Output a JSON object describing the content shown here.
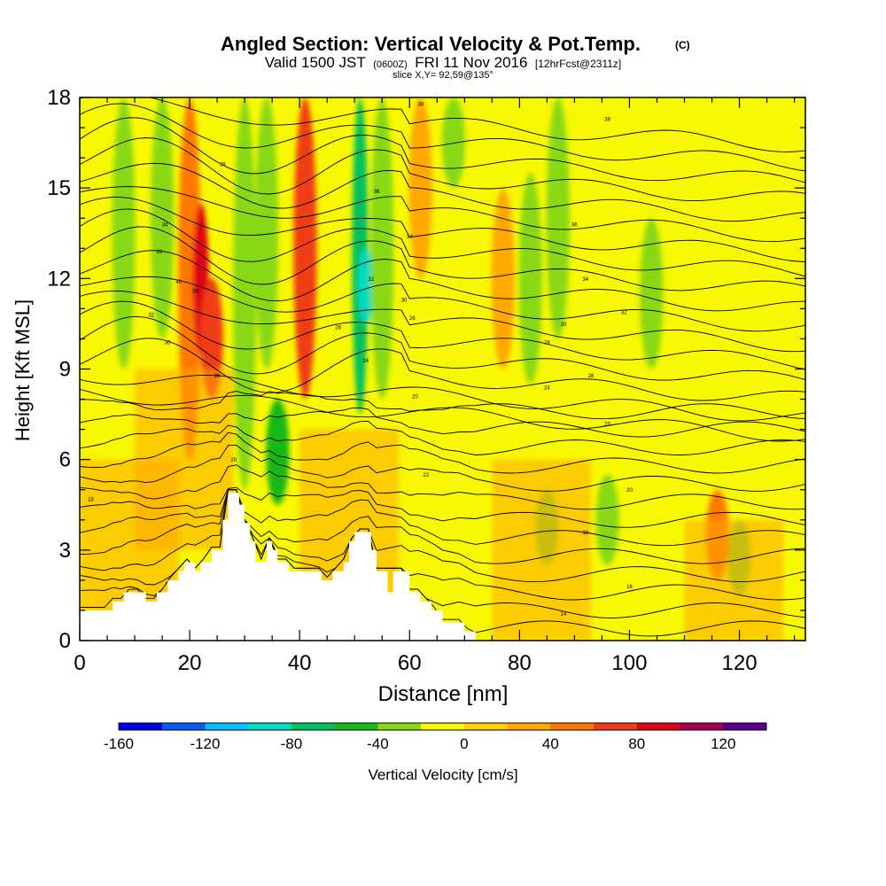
{
  "chart_data": {
    "type": "heatmap",
    "title": "Angled Section: Vertical Velocity & Pot.Temp.",
    "title_mark": "(C)",
    "subtitle": {
      "valid": "Valid 1500 JST",
      "utc": "(0600Z)",
      "date": "FRI 11 Nov 2016",
      "forecast": "[12hrFcst@2311z]"
    },
    "slice_label": "slice X,Y= 92,59@135°",
    "xlabel": "Distance [nm]",
    "ylabel": "Height [Kft MSL]",
    "xlim": [
      0,
      132
    ],
    "ylim": [
      0,
      18
    ],
    "xticks": [
      0,
      20,
      40,
      60,
      80,
      100,
      120
    ],
    "yticks": [
      0,
      3,
      6,
      9,
      12,
      15,
      18
    ],
    "grid": false,
    "colorbar": {
      "label": "Vertical Velocity [cm/s]",
      "range": [
        -160,
        140
      ],
      "step": 20,
      "tick_values": [
        -160,
        -120,
        -80,
        -40,
        0,
        40,
        80,
        120
      ],
      "colors": [
        "#0000ee",
        "#0a5cf5",
        "#00c0ff",
        "#00dcc0",
        "#00c060",
        "#18b818",
        "#88d818",
        "#f8f800",
        "#ffd000",
        "#ffa800",
        "#ff7800",
        "#f03c14",
        "#e00018",
        "#a8004c",
        "#5a0090"
      ]
    },
    "velocity_features": [
      {
        "x": 8,
        "zmin": 9,
        "zmax": 18,
        "value": -30
      },
      {
        "x": 15,
        "zmin": 10,
        "zmax": 18,
        "value": -30
      },
      {
        "x": 20,
        "zmin": 6,
        "zmax": 18,
        "value": 50
      },
      {
        "x": 22,
        "zmin": 9.5,
        "zmax": 14.5,
        "value": 85
      },
      {
        "x": 24,
        "zmin": 8,
        "zmax": 12,
        "value": 60
      },
      {
        "x": 30,
        "zmin": 5,
        "zmax": 18,
        "value": -40
      },
      {
        "x": 34,
        "zmin": 9,
        "zmax": 18,
        "value": -30
      },
      {
        "x": 36,
        "zmin": 4.5,
        "zmax": 8,
        "value": -45
      },
      {
        "x": 41,
        "zmin": 8,
        "zmax": 18,
        "value": 60
      },
      {
        "x": 51,
        "zmin": 7.5,
        "zmax": 18,
        "value": -75
      },
      {
        "x": 52,
        "zmin": 10.5,
        "zmax": 13,
        "value": -95
      },
      {
        "x": 55,
        "zmin": 8,
        "zmax": 18,
        "value": -25
      },
      {
        "x": 62,
        "zmin": 12,
        "zmax": 18,
        "value": 30
      },
      {
        "x": 68,
        "zmin": 15,
        "zmax": 18,
        "value": -35
      },
      {
        "x": 77,
        "zmin": 9,
        "zmax": 15,
        "value": 30
      },
      {
        "x": 82,
        "zmin": 8.5,
        "zmax": 15.5,
        "value": -35
      },
      {
        "x": 87,
        "zmin": 10,
        "zmax": 18,
        "value": -35
      },
      {
        "x": 85,
        "zmin": 2.5,
        "zmax": 5,
        "value": -35
      },
      {
        "x": 96,
        "zmin": 2.5,
        "zmax": 5.5,
        "value": -35
      },
      {
        "x": 104,
        "zmin": 9,
        "zmax": 14,
        "value": -35
      },
      {
        "x": 116,
        "zmin": 2,
        "zmax": 5,
        "value": 40
      },
      {
        "x": 120,
        "zmin": 1.5,
        "zmax": 4,
        "value": -35
      }
    ],
    "terrain": [
      [
        0,
        1
      ],
      [
        6,
        1
      ],
      [
        6,
        1.3
      ],
      [
        8,
        1.3
      ],
      [
        8,
        1.6
      ],
      [
        12,
        1.6
      ],
      [
        12,
        1.3
      ],
      [
        14,
        1.3
      ],
      [
        14,
        1.6
      ],
      [
        16,
        1.6
      ],
      [
        16,
        2.0
      ],
      [
        18,
        2.0
      ],
      [
        18,
        2.3
      ],
      [
        19,
        2.3
      ],
      [
        19,
        2.6
      ],
      [
        21,
        2.6
      ],
      [
        21,
        2.3
      ],
      [
        22,
        2.3
      ],
      [
        22,
        2.6
      ],
      [
        24,
        2.6
      ],
      [
        24,
        3.0
      ],
      [
        26,
        3.0
      ],
      [
        26,
        4.0
      ],
      [
        27,
        4.0
      ],
      [
        27,
        4.9
      ],
      [
        29,
        4.9
      ],
      [
        29,
        4.5
      ],
      [
        30,
        4.5
      ],
      [
        30,
        3.9
      ],
      [
        31,
        3.9
      ],
      [
        31,
        3.3
      ],
      [
        32,
        3.3
      ],
      [
        32,
        2.6
      ],
      [
        34,
        2.6
      ],
      [
        34,
        3.3
      ],
      [
        35,
        3.3
      ],
      [
        35,
        3.0
      ],
      [
        36,
        3.0
      ],
      [
        36,
        2.6
      ],
      [
        38,
        2.6
      ],
      [
        38,
        2.3
      ],
      [
        44,
        2.3
      ],
      [
        44,
        2.0
      ],
      [
        46,
        2.0
      ],
      [
        46,
        2.3
      ],
      [
        48,
        2.3
      ],
      [
        48,
        2.6
      ],
      [
        49,
        2.6
      ],
      [
        49,
        3.3
      ],
      [
        50,
        3.3
      ],
      [
        50,
        3.6
      ],
      [
        53,
        3.6
      ],
      [
        53,
        3.0
      ],
      [
        54,
        3.0
      ],
      [
        54,
        2.3
      ],
      [
        56,
        2.3
      ],
      [
        56,
        1.6
      ],
      [
        57,
        1.6
      ],
      [
        57,
        2.3
      ],
      [
        60,
        2.3
      ],
      [
        60,
        1.6
      ],
      [
        62,
        1.6
      ],
      [
        62,
        1.3
      ],
      [
        64,
        1.3
      ],
      [
        64,
        1.0
      ],
      [
        66,
        1.0
      ],
      [
        66,
        0.6
      ],
      [
        70,
        0.6
      ],
      [
        70,
        0.3
      ],
      [
        72,
        0.3
      ],
      [
        72,
        0
      ],
      [
        132,
        0
      ]
    ],
    "theta_labels": [
      {
        "x": 2,
        "z": 4.7,
        "text": "18"
      },
      {
        "x": 28,
        "z": 6.0,
        "text": "20"
      },
      {
        "x": 63,
        "z": 5.5,
        "text": "22"
      },
      {
        "x": 25,
        "z": 8.8,
        "text": "26"
      },
      {
        "x": 16,
        "z": 9.9,
        "text": "30"
      },
      {
        "x": 13,
        "z": 10.8,
        "text": "32"
      },
      {
        "x": 18,
        "z": 11.9,
        "text": "40"
      },
      {
        "x": 21,
        "z": 11.6,
        "text": "36"
      },
      {
        "x": 14.5,
        "z": 12.9,
        "text": "28"
      },
      {
        "x": 15.5,
        "z": 13.8,
        "text": "34"
      },
      {
        "x": 26,
        "z": 15.8,
        "text": "38"
      },
      {
        "x": 54,
        "z": 14.9,
        "text": "36"
      },
      {
        "x": 60,
        "z": 13.4,
        "text": "34"
      },
      {
        "x": 53,
        "z": 12.0,
        "text": "32"
      },
      {
        "x": 59,
        "z": 11.3,
        "text": "30"
      },
      {
        "x": 60.5,
        "z": 10.7,
        "text": "26"
      },
      {
        "x": 47,
        "z": 10.4,
        "text": "26"
      },
      {
        "x": 52,
        "z": 9.3,
        "text": "24"
      },
      {
        "x": 61,
        "z": 8.1,
        "text": "20"
      },
      {
        "x": 62,
        "z": 17.8,
        "text": "38"
      },
      {
        "x": 96,
        "z": 17.3,
        "text": "38"
      },
      {
        "x": 90,
        "z": 13.8,
        "text": "36"
      },
      {
        "x": 92,
        "z": 12.0,
        "text": "34"
      },
      {
        "x": 99,
        "z": 10.9,
        "text": "32"
      },
      {
        "x": 88,
        "z": 10.5,
        "text": "30"
      },
      {
        "x": 85,
        "z": 9.9,
        "text": "28"
      },
      {
        "x": 93,
        "z": 8.8,
        "text": "26"
      },
      {
        "x": 85,
        "z": 8.4,
        "text": "24"
      },
      {
        "x": 96,
        "z": 7.2,
        "text": "20"
      },
      {
        "x": 100,
        "z": 5.0,
        "text": "20"
      },
      {
        "x": 92,
        "z": 3.6,
        "text": "18"
      },
      {
        "x": 100,
        "z": 1.8,
        "text": "16"
      },
      {
        "x": 88,
        "z": 0.9,
        "text": "14"
      }
    ]
  }
}
